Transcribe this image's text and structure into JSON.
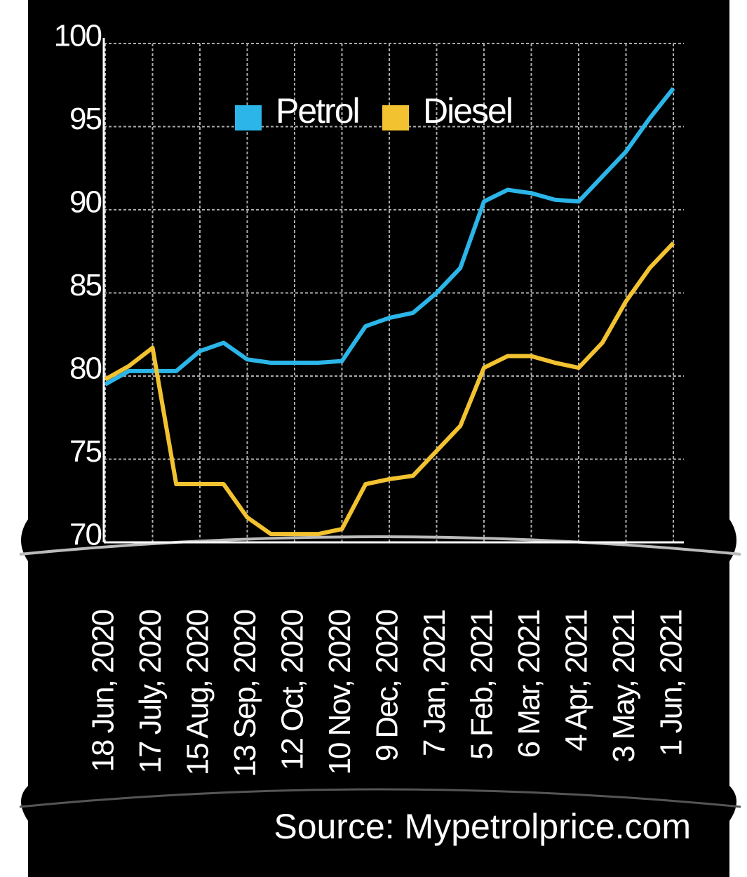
{
  "chart_data": {
    "type": "line",
    "categories": [
      "18 Jun, 2020",
      null,
      "17 July, 2020",
      null,
      "15 Aug, 2020",
      null,
      "13 Sep, 2020",
      null,
      "12 Oct, 2020",
      null,
      "10 Nov, 2020",
      null,
      "9 Dec, 2020",
      null,
      "7 Jan, 2021",
      null,
      "5 Feb, 2021",
      null,
      "6 Mar, 2021",
      null,
      "4 Apr, 2021",
      null,
      "3 May, 2021",
      null,
      "1 Jun, 2021"
    ],
    "series": [
      {
        "name": "Petrol",
        "color": "#2bb5e8",
        "values": [
          79.5,
          80.3,
          80.3,
          80.3,
          81.5,
          82.0,
          81.0,
          80.8,
          80.8,
          80.8,
          80.9,
          83.0,
          83.5,
          83.8,
          85.0,
          86.5,
          90.5,
          91.2,
          91.0,
          90.6,
          90.5,
          92.0,
          93.5,
          95.5,
          97.3
        ]
      },
      {
        "name": "Diesel",
        "color": "#f2c230",
        "values": [
          79.8,
          80.6,
          81.7,
          73.5,
          73.5,
          73.5,
          71.5,
          70.5,
          70.5,
          70.5,
          70.8,
          73.5,
          73.8,
          74.0,
          75.5,
          77.0,
          80.5,
          81.2,
          81.2,
          80.8,
          80.5,
          82.0,
          84.5,
          86.5,
          88.0
        ]
      }
    ],
    "ylim": [
      70,
      100
    ],
    "yticks": [
      70,
      75,
      80,
      85,
      90,
      95,
      100
    ],
    "grid": true,
    "source": "Source:  Mypetrolprice.com"
  }
}
